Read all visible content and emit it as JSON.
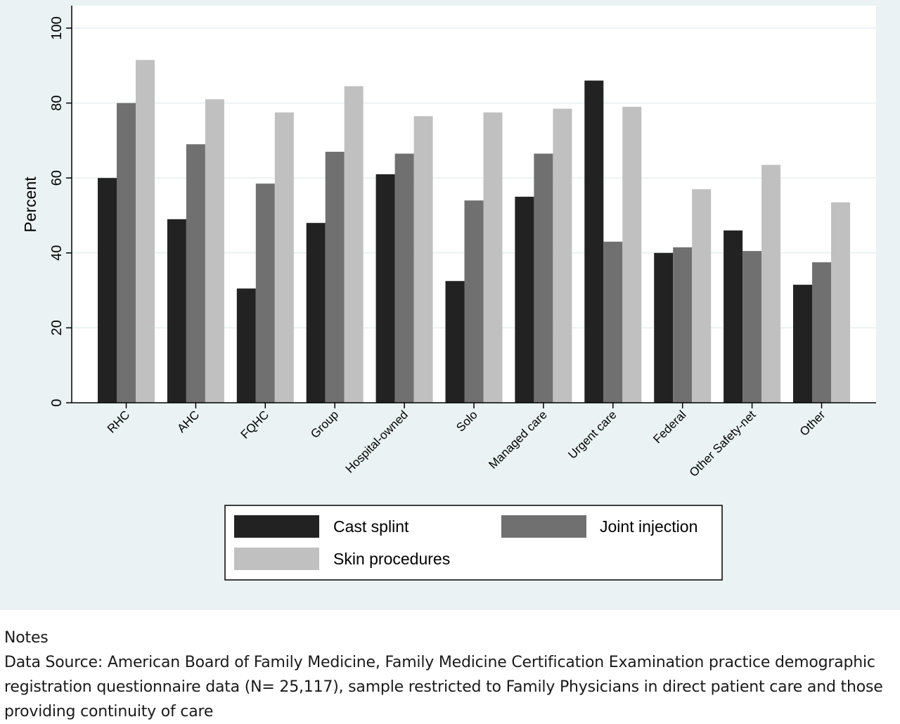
{
  "chart_data": {
    "type": "bar",
    "title": "",
    "xlabel": "",
    "ylabel": "Percent",
    "ylim": [
      0,
      100
    ],
    "yticks": [
      "0",
      "20",
      "40",
      "60",
      "80",
      "100"
    ],
    "grid": true,
    "legend_position": "bottom",
    "categories": [
      "RHC",
      "AHC",
      "FQHC",
      "Group",
      "Hospital-owned",
      "Solo",
      "Managed care",
      "Urgent care",
      "Federal",
      "Other Safety-net",
      "Other"
    ],
    "series": [
      {
        "name": "Cast splint",
        "color": "#222222",
        "values": [
          60,
          49,
          30.5,
          48,
          61,
          32.5,
          55,
          86,
          40,
          46,
          31.5
        ]
      },
      {
        "name": "Joint injection",
        "color": "#707070",
        "values": [
          80,
          69,
          58.5,
          67,
          66.5,
          54,
          66.5,
          43,
          41.5,
          40.5,
          37.5
        ]
      },
      {
        "name": "Skin procedures",
        "color": "#c0c0c0",
        "values": [
          91.5,
          81,
          77.5,
          84.5,
          76.5,
          77.5,
          78.5,
          79,
          57,
          63.5,
          53.5
        ]
      }
    ]
  },
  "notes": {
    "heading": "Notes",
    "text": "Data Source: American Board of Family Medicine, Family Medicine Certification Examination practice demographic registration questionnaire data (N= 25,117), sample restricted to Family Physicians in direct patient care and those providing continuity of care"
  }
}
